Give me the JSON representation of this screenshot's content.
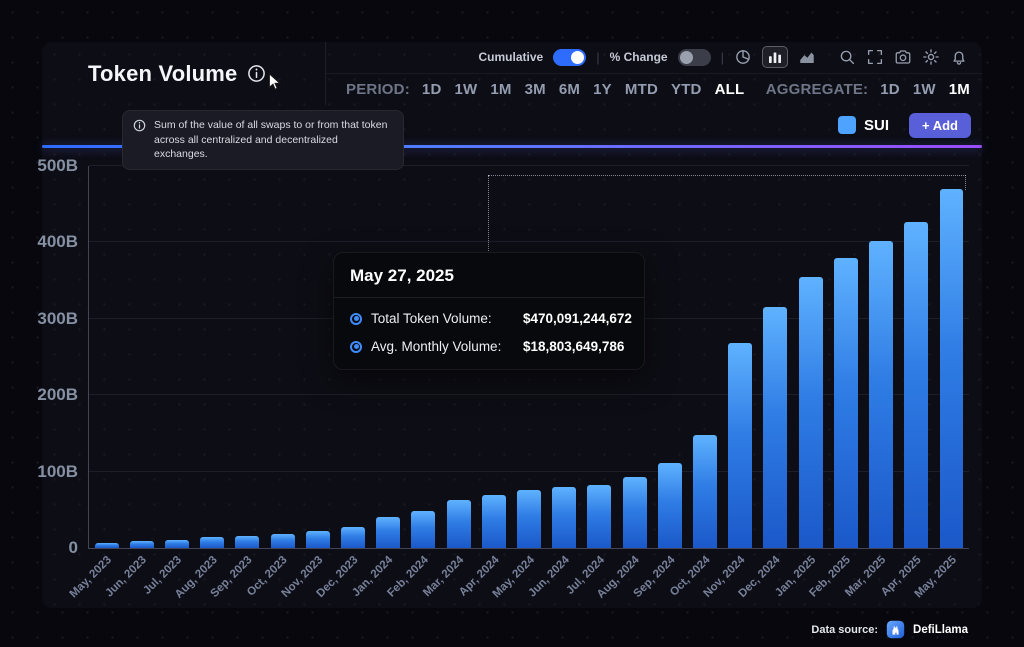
{
  "header": {
    "title": "Token Volume",
    "period_label": "PERIOD:",
    "period_options": [
      "1D",
      "1W",
      "1M",
      "3M",
      "6M",
      "1Y",
      "MTD",
      "YTD",
      "ALL"
    ],
    "period_selected": "ALL",
    "aggregate_label": "AGGREGATE:",
    "aggregate_options": [
      "1D",
      "1W",
      "1M"
    ],
    "aggregate_selected": "1M"
  },
  "toolbar": {
    "toggles": [
      {
        "label": "Cumulative",
        "state": "on"
      },
      {
        "label": "% Change",
        "state": "off"
      }
    ],
    "chart_type_icons": [
      "pie-chart-icon",
      "bar-chart-icon",
      "area-chart-icon"
    ],
    "active_chart_type": "bar-chart-icon",
    "action_icons": [
      "search-icon",
      "fullscreen-icon",
      "camera-icon",
      "settings-icon",
      "notifications-icon"
    ]
  },
  "info_tooltip": {
    "text": "Sum of the value of all swaps to or from that token across all centralized and decentralized exchanges."
  },
  "legend": {
    "token": "SUI",
    "add_label": "+ Add"
  },
  "chart_tooltip": {
    "date": "May 27, 2025",
    "rows": [
      {
        "label": "Total Token Volume:",
        "value": "$470,091,244,672"
      },
      {
        "label": "Avg. Monthly Volume:",
        "value": "$18,803,649,786"
      }
    ]
  },
  "footer": {
    "data_source_label": "Data source:",
    "brand": "DefiLlama"
  },
  "colors": {
    "accent_toggle_on": "#2e6bff",
    "bar_top": "#5fb2ff",
    "bar_bottom": "#1b58c9",
    "legend_sui": "#4da3ff",
    "add_button": "#585fd9",
    "gradient_line_left": "#2e6bff",
    "gradient_line_right": "#9a4df6"
  },
  "chart_data": {
    "type": "bar",
    "title": "Token Volume (Cumulative)",
    "series_name": "SUI",
    "unit": "USD billions",
    "categories": [
      "May, 2023",
      "Jun, 2023",
      "Jul, 2023",
      "Aug, 2023",
      "Sep, 2023",
      "Oct, 2023",
      "Nov, 2023",
      "Dec, 2023",
      "Jan, 2024",
      "Feb, 2024",
      "Mar, 2024",
      "Apr, 2024",
      "May, 2024",
      "Jun, 2024",
      "Jul, 2024",
      "Aug, 2024",
      "Sep, 2024",
      "Oct, 2024",
      "Nov, 2024",
      "Dec, 2024",
      "Jan, 2025",
      "Feb, 2025",
      "Mar, 2025",
      "Apr, 2025",
      "May, 2025"
    ],
    "values": [
      6,
      9,
      11,
      14,
      16,
      18,
      22,
      28,
      40,
      49,
      63,
      70,
      76,
      80,
      83,
      93,
      111,
      148,
      268,
      316,
      355,
      380,
      402,
      427,
      470
    ],
    "xlabel": "",
    "ylabel": "",
    "ylim": [
      0,
      500
    ],
    "ytick_labels": [
      "0",
      "100B",
      "200B",
      "300B",
      "400B",
      "500B"
    ],
    "grid": true,
    "legend_position": "top-right",
    "hovered_point": {
      "date": "May 27, 2025",
      "total_token_volume": "$470,091,244,672",
      "avg_monthly_volume": "$18,803,649,786"
    }
  }
}
